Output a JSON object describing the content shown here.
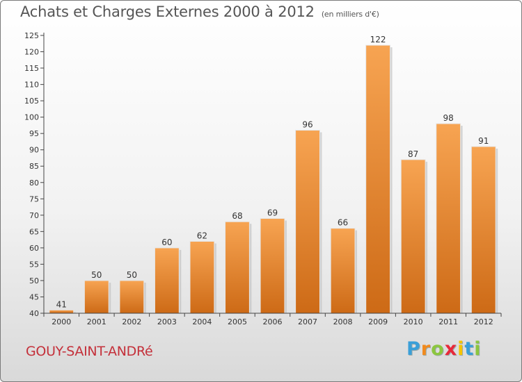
{
  "chart_data": {
    "type": "bar",
    "title": "Achats et Charges Externes 2000 à 2012",
    "subtitle": "(en milliers d'€)",
    "categories": [
      "2000",
      "2001",
      "2002",
      "2003",
      "2004",
      "2005",
      "2006",
      "2007",
      "2008",
      "2009",
      "2010",
      "2011",
      "2012"
    ],
    "values": [
      41,
      50,
      50,
      60,
      62,
      68,
      69,
      96,
      66,
      122,
      87,
      98,
      91
    ],
    "data_labels": [
      "41",
      "50",
      "50",
      "60",
      "62",
      "68",
      "69",
      "96",
      "66",
      "122",
      "87",
      "98",
      "91"
    ],
    "ylim": [
      40,
      125
    ],
    "yticks": [
      40,
      45,
      50,
      55,
      60,
      65,
      70,
      75,
      80,
      85,
      90,
      95,
      100,
      105,
      110,
      115,
      120,
      125
    ],
    "xlabel": "",
    "ylabel": "",
    "grid": false,
    "bar_color_top": "#f7a452",
    "bar_color_bottom": "#cd6a16"
  },
  "commune": "GOUY-SAINT-ANDRé",
  "brand": {
    "letters": [
      "P",
      "r",
      "o",
      "x",
      "i",
      "t",
      "i"
    ],
    "colors": [
      "#3a9fd8",
      "#f18a1e",
      "#8cc63f",
      "#e8293a",
      "#f6c400",
      "#3a9fd8",
      "#8cc63f"
    ]
  }
}
